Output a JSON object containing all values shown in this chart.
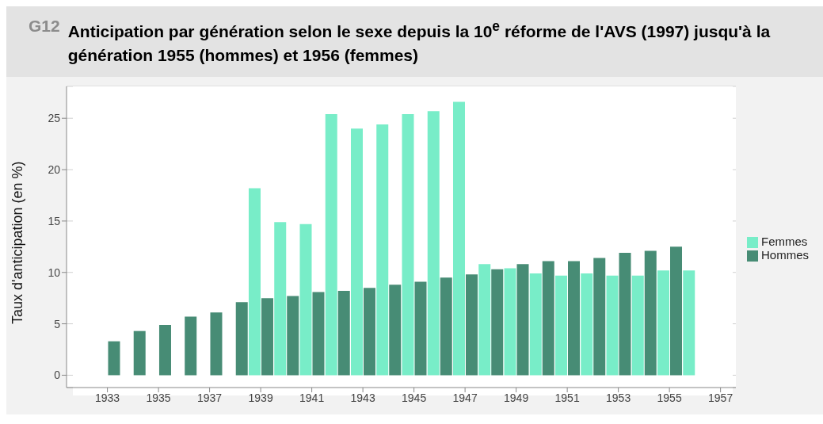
{
  "chart_data": {
    "type": "bar",
    "title": "Anticipation par génération selon le sexe depuis la 10$^{e}$ réforme de l'AVS (1997) jusqu'à la génération 1955 (hommes) et 1956 (femmes)",
    "annotations": [
      "G12"
    ],
    "ylabel": "Taux d'anticipation (en %)",
    "series": [
      {
        "name": "Femmes",
        "color": "#78edc8",
        "x": [
          1939,
          1940,
          1941,
          1942,
          1943,
          1944,
          1945,
          1946,
          1947,
          1948,
          1949,
          1950,
          1951,
          1952,
          1953,
          1954,
          1955,
          1956
        ],
        "values": [
          18.2,
          14.9,
          14.7,
          25.4,
          24.0,
          24.4,
          25.4,
          25.7,
          26.6,
          10.8,
          10.4,
          9.9,
          9.7,
          9.9,
          9.7,
          9.7,
          10.2,
          10.2
        ]
      },
      {
        "name": "Hommes",
        "color": "#478c75",
        "x": [
          1933,
          1934,
          1935,
          1936,
          1937,
          1938,
          1939,
          1940,
          1941,
          1942,
          1943,
          1944,
          1945,
          1946,
          1947,
          1948,
          1949,
          1950,
          1951,
          1952,
          1953,
          1954,
          1955
        ],
        "values": [
          3.3,
          4.3,
          4.9,
          5.7,
          6.1,
          7.1,
          7.5,
          7.7,
          8.1,
          8.2,
          8.5,
          8.8,
          9.1,
          9.5,
          9.8,
          10.3,
          10.8,
          11.1,
          11.1,
          11.4,
          11.9,
          12.1,
          12.5
        ]
      }
    ],
    "xlim": [
      1931.4,
      1957.6
    ],
    "xticks": [
      1933,
      1935,
      1937,
      1939,
      1941,
      1943,
      1945,
      1947,
      1949,
      1951,
      1953,
      1955,
      1957
    ],
    "ylim": [
      -1.2,
      28.1
    ],
    "yticks": [
      0,
      5,
      10,
      15,
      20,
      25
    ],
    "grid": "y",
    "legend": "right"
  }
}
